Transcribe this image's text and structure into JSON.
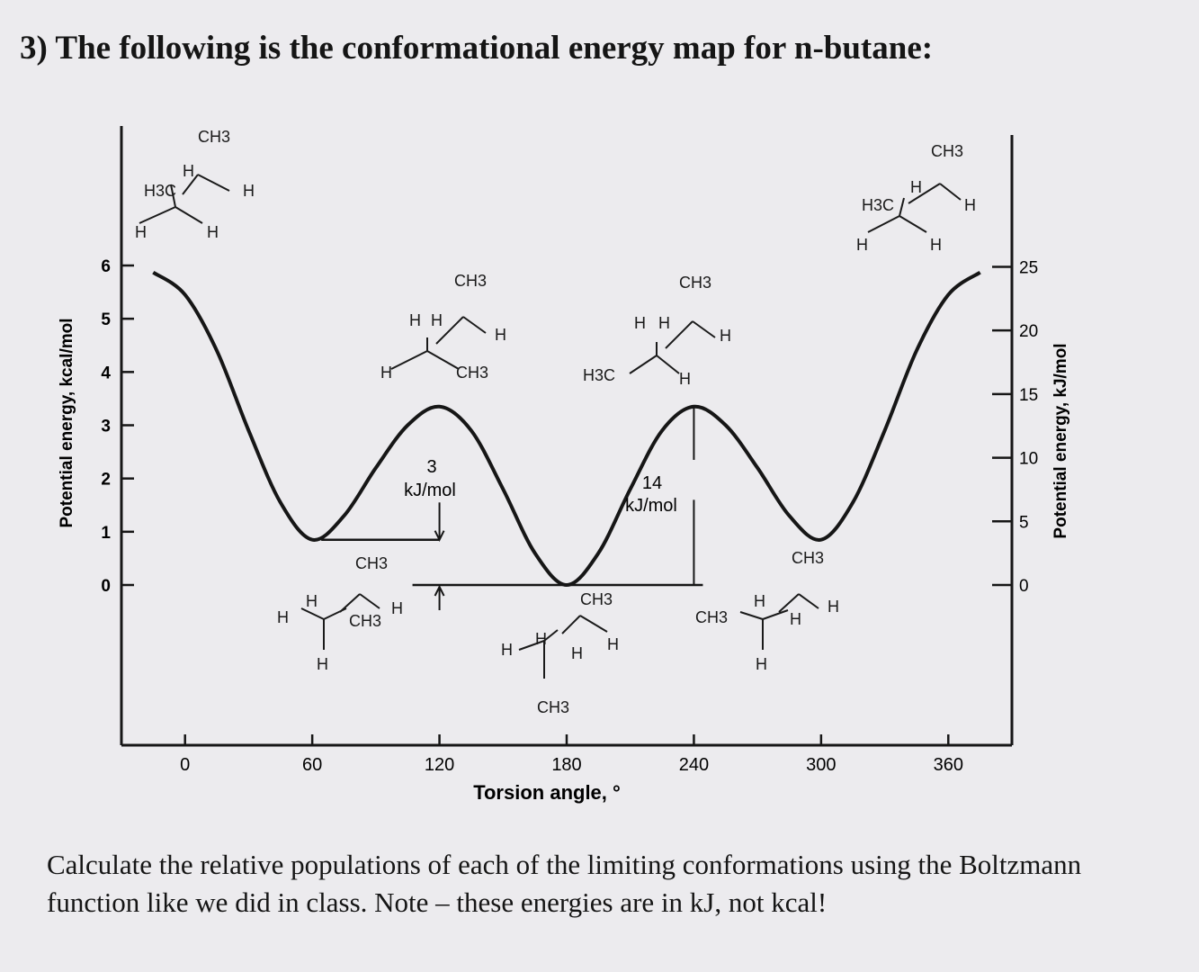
{
  "question": "3) The following is the conformational energy map for n-butane:",
  "instructions": "Calculate the relative populations of each of the limiting conformations using the Boltzmann function like we did in class.  Note – these energies are in kJ, not kcal!",
  "chart_data": {
    "type": "line",
    "title": "",
    "xlabel": "Torsion angle, °",
    "ylabel": "Potential energy, kcal/mol",
    "y2label": "Potential energy, kJ/mol",
    "xlim": [
      -30,
      390
    ],
    "ylim": [
      0,
      6
    ],
    "x_ticks": [
      0,
      60,
      120,
      180,
      240,
      300,
      360
    ],
    "y_ticks": [
      0,
      1,
      2,
      3,
      4,
      5,
      6
    ],
    "y_tick_labels": [
      "0",
      "1",
      "2",
      "3",
      "4",
      "5",
      "6"
    ],
    "y2_ticks": [
      0,
      5,
      10,
      15,
      20,
      25
    ],
    "series": [
      {
        "x": [
          -15,
          0,
          15,
          30,
          45,
          60,
          75,
          90,
          105,
          120,
          135,
          150,
          165,
          180,
          195,
          210,
          225,
          240,
          255,
          270,
          285,
          300,
          315,
          330,
          345,
          360,
          375
        ],
        "y": [
          5.87,
          5.45,
          4.4,
          2.9,
          1.55,
          0.85,
          1.3,
          2.2,
          3.0,
          3.35,
          2.9,
          1.8,
          0.6,
          0.0,
          0.6,
          1.8,
          2.9,
          3.35,
          3.0,
          2.2,
          1.3,
          0.85,
          1.55,
          2.9,
          4.4,
          5.45,
          5.87
        ]
      }
    ],
    "annotations": [
      {
        "value": "3",
        "unit": "kJ/mol"
      },
      {
        "value": "14",
        "unit": "kJ/mol"
      }
    ]
  },
  "structures": {
    "eclipsed_0": [
      "CH3",
      "H",
      "H3C",
      "H",
      "H",
      "H"
    ],
    "gauche_60": [
      "CH3",
      "H",
      "H",
      "CH3",
      "H",
      "H"
    ],
    "eclipsed_120": [
      "CH3",
      "H",
      "H",
      "H",
      "H",
      "CH3"
    ],
    "anti_180": [
      "CH3",
      "H",
      "H",
      "H",
      "H",
      "CH3"
    ],
    "eclipsed_240": [
      "CH3",
      "H",
      "H",
      "H",
      "H3C",
      "H"
    ],
    "gauche_300": [
      "CH3",
      "H",
      "H",
      "H",
      "CH3",
      "H"
    ],
    "eclipsed_360": [
      "CH3",
      "H",
      "H",
      "H3C",
      "H",
      "H"
    ]
  }
}
